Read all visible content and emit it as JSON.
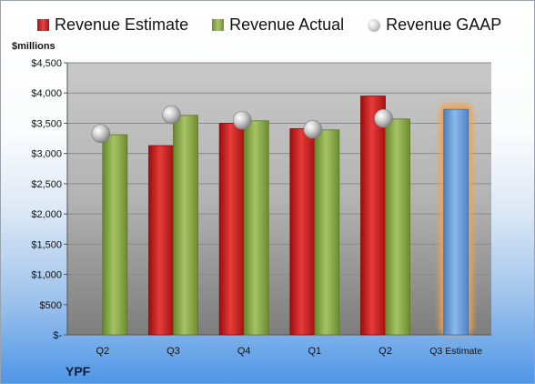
{
  "legend": {
    "estimate": "Revenue Estimate",
    "actual": "Revenue Actual",
    "gaap": "Revenue GAAP"
  },
  "unit_label": "$millions",
  "company": "YPF",
  "colors": {
    "estimate": "#d42a2a",
    "actual": "#8eb04a",
    "gaap": "#b8b8b8",
    "future_estimate": "#6a9fd8",
    "highlight_glow": "#f5a24a"
  },
  "chart_data": {
    "type": "bar",
    "categories": [
      "Q2",
      "Q3",
      "Q4",
      "Q1",
      "Q2",
      "Q3 Estimate"
    ],
    "series": [
      {
        "name": "Revenue Estimate",
        "values": [
          null,
          3130,
          3500,
          3410,
          3950,
          3730
        ]
      },
      {
        "name": "Revenue Actual",
        "values": [
          3310,
          3630,
          3540,
          3390,
          3570,
          null
        ]
      },
      {
        "name": "Revenue GAAP",
        "values": [
          3330,
          3640,
          3550,
          3400,
          3580,
          null
        ]
      }
    ],
    "highlight": "Q3 Estimate",
    "ylim": [
      0,
      4500
    ],
    "yticks": [
      "$-",
      "$500",
      "$1,000",
      "$1,500",
      "$2,000",
      "$2,500",
      "$3,000",
      "$3,500",
      "$4,000",
      "$4,500"
    ],
    "ylabel": "$millions",
    "xlabel": "",
    "grid": true,
    "legend_position": "top"
  }
}
